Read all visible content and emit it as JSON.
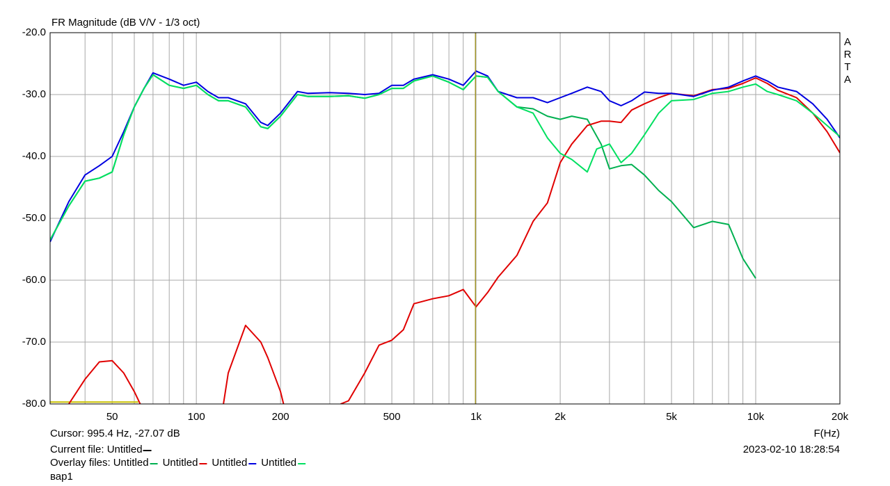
{
  "chart_data": {
    "type": "line",
    "title": "FR Magnitude (dB V/V - 1/3 oct)",
    "watermark": "ARTA",
    "x_label": "F(Hz)",
    "log_x": true,
    "grid": true,
    "xlim": [
      30,
      20000
    ],
    "ylim": [
      -80,
      -20
    ],
    "xticks": [
      50,
      100,
      200,
      500,
      {
        "value": 1000,
        "label": "1k"
      },
      {
        "value": 2000,
        "label": "2k"
      },
      {
        "value": 5000,
        "label": "5k"
      },
      {
        "value": 10000,
        "label": "10k"
      },
      {
        "value": 20000,
        "label": "20k"
      }
    ],
    "xgrid_minor": [
      40,
      60,
      70,
      80,
      90,
      300,
      400,
      600,
      700,
      800,
      900,
      3000,
      4000,
      6000,
      7000,
      8000,
      9000
    ],
    "yticks": [
      {
        "value": -20,
        "label": "-20.0"
      },
      {
        "value": -30,
        "label": "-30.0"
      },
      {
        "value": -40,
        "label": "-40.0"
      },
      {
        "value": -50,
        "label": "-50.0"
      },
      {
        "value": -60,
        "label": "-60.0"
      },
      {
        "value": -70,
        "label": "-70.0"
      },
      {
        "value": -80,
        "label": "-80.0"
      }
    ],
    "cursor": {
      "text": "Cursor: 995.4 Hz, -27.07 dB",
      "x": 995.4,
      "color": "#a09428"
    },
    "current_file": {
      "label": "Current file: Untitled",
      "legend_color": "#000000",
      "color": "#c8c000",
      "x": [
        30,
        62
      ],
      "values": [
        -79.7,
        -79.7
      ]
    },
    "overlay_label": "Overlay files:",
    "timestamp": "2023-02-10  18:28:54",
    "note": "вар1",
    "series": [
      {
        "name": "Untitled",
        "color": "#00b050",
        "x": [
          30,
          35,
          40,
          45,
          50,
          55,
          60,
          65,
          70,
          80,
          90,
          100,
          110,
          120,
          130,
          150,
          170,
          180,
          200,
          230,
          250,
          300,
          350,
          400,
          450,
          500,
          550,
          600,
          700,
          800,
          900,
          1000,
          1100,
          1200,
          1400,
          1600,
          1800,
          2000,
          2200,
          2500,
          2800,
          3000,
          3300,
          3600,
          4000,
          4500,
          5000,
          6000,
          7000,
          8000,
          9000,
          10000
        ],
        "values": [
          -53.5,
          -48,
          -44,
          -43.5,
          -42.5,
          -36.5,
          -32,
          -29,
          -26.8,
          -28.5,
          -29,
          -28.5,
          -30,
          -31,
          -31,
          -32,
          -35.2,
          -35.5,
          -33.5,
          -30,
          -30.3,
          -30.3,
          -30.2,
          -30.6,
          -30,
          -29,
          -29,
          -27.8,
          -27,
          -28,
          -29.2,
          -27,
          -27.2,
          -29.5,
          -32,
          -32.3,
          -33.5,
          -34,
          -33.5,
          -34,
          -38,
          -42,
          -41.5,
          -41.3,
          -43,
          -45.5,
          -47.3,
          -51.5,
          -50.5,
          -51,
          -56.5,
          -59.7
        ]
      },
      {
        "name": "Untitled",
        "color": "#e00000",
        "x": [
          35,
          40,
          45,
          50,
          55,
          60,
          63,
          null,
          125,
          130,
          150,
          170,
          180,
          200,
          205,
          null,
          328,
          350,
          400,
          450,
          500,
          550,
          600,
          700,
          800,
          900,
          1000,
          1100,
          1200,
          1400,
          1600,
          1800,
          2000,
          2200,
          2500,
          2800,
          3000,
          3300,
          3600,
          4000,
          4500,
          5000,
          6000,
          7000,
          8000,
          9000,
          10000,
          11000,
          12000,
          14000,
          16000,
          18000,
          20000
        ],
        "values": [
          -80,
          -76,
          -73.2,
          -73,
          -75,
          -78,
          -80,
          null,
          -80,
          -75,
          -67.3,
          -70,
          -72.5,
          -78,
          -80,
          null,
          -80,
          -79.5,
          -75,
          -70.5,
          -69.7,
          -68,
          -63.8,
          -63,
          -62.5,
          -61.5,
          -64.3,
          -62,
          -59.5,
          -56,
          -50.5,
          -47.5,
          -41,
          -38,
          -35,
          -34.3,
          -34.3,
          -34.5,
          -32.5,
          -31.5,
          -30.5,
          -29.8,
          -30.2,
          -29.2,
          -29,
          -28.2,
          -27.3,
          -28.2,
          -29.3,
          -30.5,
          -33,
          -36,
          -39.4
        ]
      },
      {
        "name": "Untitled",
        "color": "#0000e0",
        "x": [
          30,
          35,
          40,
          45,
          50,
          55,
          60,
          65,
          70,
          80,
          90,
          100,
          110,
          120,
          130,
          150,
          170,
          180,
          200,
          230,
          250,
          300,
          350,
          400,
          450,
          500,
          550,
          600,
          700,
          800,
          900,
          1000,
          1100,
          1200,
          1400,
          1600,
          1800,
          2000,
          2200,
          2500,
          2800,
          3000,
          3300,
          3600,
          4000,
          4500,
          5000,
          6000,
          7000,
          8000,
          9000,
          10000,
          11000,
          12000,
          14000,
          16000,
          18000,
          20000
        ],
        "values": [
          -53.8,
          -47.3,
          -43,
          -41.5,
          -40,
          -36,
          -32,
          -29,
          -26.5,
          -27.5,
          -28.5,
          -28,
          -29.5,
          -30.5,
          -30.5,
          -31.5,
          -34.5,
          -35,
          -33,
          -29.5,
          -29.8,
          -29.7,
          -29.8,
          -30,
          -29.8,
          -28.5,
          -28.5,
          -27.5,
          -26.8,
          -27.5,
          -28.5,
          -26.2,
          -27,
          -29.5,
          -30.5,
          -30.5,
          -31.3,
          -30.5,
          -29.8,
          -28.8,
          -29.5,
          -31,
          -31.8,
          -31,
          -29.6,
          -29.8,
          -29.8,
          -30.3,
          -29.3,
          -28.8,
          -27.8,
          -27,
          -27.8,
          -28.8,
          -29.5,
          -31.5,
          -34,
          -37
        ]
      },
      {
        "name": "Untitled",
        "color": "#00e060",
        "x": [
          30,
          35,
          40,
          45,
          50,
          55,
          60,
          65,
          70,
          80,
          90,
          100,
          110,
          120,
          130,
          150,
          170,
          180,
          200,
          230,
          250,
          300,
          350,
          400,
          450,
          500,
          550,
          600,
          700,
          800,
          900,
          1000,
          1100,
          1200,
          1400,
          1600,
          1800,
          2000,
          2200,
          2500,
          2700,
          3000,
          3300,
          3600,
          4000,
          4500,
          5000,
          6000,
          7000,
          8000,
          9000,
          10000,
          11000,
          12000,
          14000,
          16000,
          18000,
          20000
        ],
        "values": [
          -53.5,
          -48,
          -44,
          -43.5,
          -42.5,
          -36.5,
          -32,
          -29,
          -26.8,
          -28.5,
          -29,
          -28.5,
          -30,
          -31,
          -31,
          -32,
          -35.2,
          -35.5,
          -33.5,
          -30,
          -30.3,
          -30.3,
          -30.2,
          -30.6,
          -30,
          -29,
          -29,
          -27.8,
          -27,
          -28,
          -29.2,
          -27,
          -27.2,
          -29.5,
          -32,
          -33,
          -37,
          -39.5,
          -40.5,
          -42.5,
          -38.8,
          -38,
          -41,
          -39.5,
          -36.5,
          -33,
          -31,
          -30.8,
          -29.8,
          -29.5,
          -28.8,
          -28.3,
          -29.5,
          -30,
          -31,
          -33,
          -35,
          -36.8
        ]
      }
    ]
  }
}
